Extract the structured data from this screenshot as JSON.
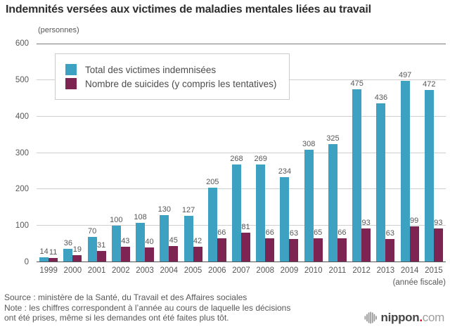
{
  "title": "Indemnités versées aux victimes de maladies mentales liées au travail",
  "chart_data": {
    "type": "bar",
    "unit_label": "(personnes)",
    "x_axis_label": "(année fiscale)",
    "categories": [
      "1999",
      "2000",
      "2001",
      "2002",
      "2003",
      "2004",
      "2005",
      "2006",
      "2007",
      "2008",
      "2009",
      "2010",
      "2011",
      "2012",
      "2013",
      "2014",
      "2015"
    ],
    "series": [
      {
        "name": "Total des victimes indemnisées",
        "color": "#3da1c2",
        "values": [
          14,
          36,
          70,
          100,
          108,
          130,
          127,
          205,
          268,
          269,
          234,
          308,
          325,
          475,
          436,
          497,
          472
        ]
      },
      {
        "name": "Nombre de suicides (y compris les tentatives)",
        "color": "#7d2452",
        "values": [
          11,
          19,
          31,
          43,
          40,
          45,
          42,
          66,
          81,
          66,
          63,
          65,
          66,
          93,
          63,
          99,
          93
        ]
      }
    ],
    "ylim": [
      0,
      600
    ],
    "yticks": [
      0,
      100,
      200,
      300,
      400,
      500,
      600
    ],
    "grid": true,
    "legend_position": "top-left"
  },
  "footer": {
    "source": "Source : ministère de la Santé, du Travail et des Affaires sociales",
    "note_line1": "Note : les chiffres correspondent à l’année au cours de laquelle les décisions",
    "note_line2": "ont été prises, même si les demandes ont été faites plus tôt."
  },
  "logo": {
    "name": "nippon",
    "dot": ".",
    "tld": "com"
  },
  "colors": {
    "total_bar": "#3da1c2",
    "suicide_bar": "#7d2452",
    "gridline": "#cfcfcf",
    "axis": "#595757",
    "logo_red": "#e60012"
  }
}
